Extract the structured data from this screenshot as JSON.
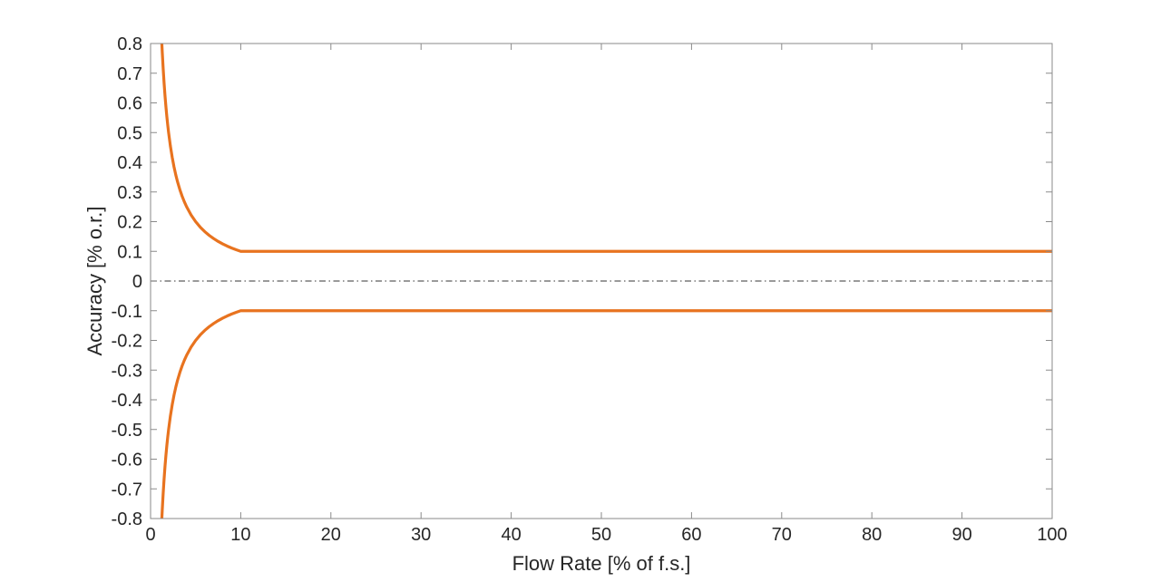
{
  "figure": {
    "background_color": "#ffffff"
  },
  "chart_data": {
    "type": "line",
    "title": "",
    "xlabel": "Flow Rate [% of f.s.]",
    "ylabel": "Accuracy [% o.r.]",
    "xlim": [
      0,
      100
    ],
    "ylim": [
      -0.8,
      0.8
    ],
    "grid": false,
    "legend": null,
    "box": true,
    "tick_direction": "in",
    "axis_color": "#8a8a8a",
    "tick_label_color": "#262626",
    "xticks": [
      0,
      10,
      20,
      30,
      40,
      50,
      60,
      70,
      80,
      90,
      100
    ],
    "xtick_labels": [
      "0",
      "10",
      "20",
      "30",
      "40",
      "50",
      "60",
      "70",
      "80",
      "90",
      "100"
    ],
    "yticks": [
      -0.8,
      -0.7,
      -0.6,
      -0.5,
      -0.4,
      -0.3,
      -0.2,
      -0.1,
      0,
      0.1,
      0.2,
      0.3,
      0.4,
      0.5,
      0.6,
      0.7,
      0.8
    ],
    "ytick_labels": [
      "-0.8",
      "-0.7",
      "-0.6",
      "-0.5",
      "-0.4",
      "-0.3",
      "-0.2",
      "-0.1",
      "0",
      "0.1",
      "0.2",
      "0.3",
      "0.4",
      "0.5",
      "0.6",
      "0.7",
      "0.8"
    ],
    "series": [
      {
        "name": "upper-accuracy-limit",
        "color": "#E8731F",
        "width": 3.2,
        "style": "solid",
        "x": [
          1.25,
          1.3,
          1.4,
          1.5,
          1.6,
          1.7,
          1.8,
          1.9,
          2.0,
          2.2,
          2.4,
          2.6,
          2.8,
          3.0,
          3.25,
          3.5,
          3.75,
          4.0,
          4.5,
          5.0,
          5.5,
          6.0,
          6.5,
          7.0,
          7.5,
          8.0,
          8.5,
          9.0,
          9.5,
          10.0,
          100.0
        ],
        "y": [
          0.8,
          0.7692,
          0.7143,
          0.6667,
          0.625,
          0.5882,
          0.5556,
          0.5263,
          0.5,
          0.4545,
          0.4167,
          0.3846,
          0.3571,
          0.3333,
          0.3077,
          0.2857,
          0.2667,
          0.25,
          0.2222,
          0.2,
          0.1818,
          0.1667,
          0.1538,
          0.1429,
          0.1333,
          0.125,
          0.1176,
          0.1111,
          0.1053,
          0.1,
          0.1
        ]
      },
      {
        "name": "lower-accuracy-limit",
        "color": "#E8731F",
        "width": 3.2,
        "style": "solid",
        "x": [
          1.25,
          1.3,
          1.4,
          1.5,
          1.6,
          1.7,
          1.8,
          1.9,
          2.0,
          2.2,
          2.4,
          2.6,
          2.8,
          3.0,
          3.25,
          3.5,
          3.75,
          4.0,
          4.5,
          5.0,
          5.5,
          6.0,
          6.5,
          7.0,
          7.5,
          8.0,
          8.5,
          9.0,
          9.5,
          10.0,
          100.0
        ],
        "y": [
          -0.8,
          -0.7692,
          -0.7143,
          -0.6667,
          -0.625,
          -0.5882,
          -0.5556,
          -0.5263,
          -0.5,
          -0.4545,
          -0.4167,
          -0.3846,
          -0.3571,
          -0.3333,
          -0.3077,
          -0.2857,
          -0.2667,
          -0.25,
          -0.2222,
          -0.2,
          -0.1818,
          -0.1667,
          -0.1538,
          -0.1429,
          -0.1333,
          -0.125,
          -0.1176,
          -0.1111,
          -0.1053,
          -0.1,
          -0.1
        ]
      },
      {
        "name": "zero-reference-line",
        "color": "#5e5e5e",
        "width": 1.2,
        "style": "dash-dot",
        "x": [
          0,
          100
        ],
        "y": [
          0,
          0
        ]
      }
    ]
  }
}
